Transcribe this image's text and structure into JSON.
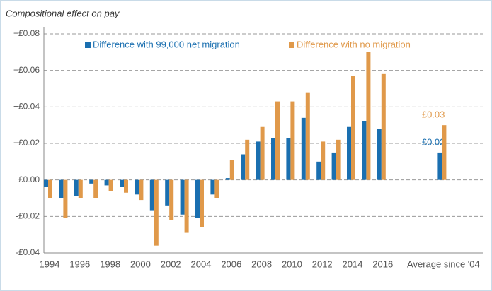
{
  "chart_data": {
    "type": "bar",
    "y_axis_title": "Compositional effect on pay",
    "categories": [
      "1994",
      null,
      "1996",
      null,
      "1998",
      null,
      "2000",
      null,
      "2002",
      null,
      "2004",
      null,
      "2006",
      null,
      "2008",
      null,
      "2010",
      null,
      "2012",
      null,
      "2014",
      null,
      "2016",
      null,
      null,
      null,
      "Average since '04"
    ],
    "series": [
      {
        "name": "Difference with 99,000 net migration",
        "color": "#1a6fb0",
        "values": [
          -0.004,
          -0.01,
          -0.009,
          -0.002,
          -0.003,
          -0.004,
          -0.008,
          -0.017,
          -0.014,
          -0.019,
          -0.021,
          -0.008,
          0.001,
          0.014,
          0.021,
          0.023,
          0.023,
          0.034,
          0.01,
          0.015,
          0.029,
          0.032,
          0.028,
          null,
          null,
          null,
          0.015
        ],
        "value_labels": [
          null,
          null,
          null,
          null,
          null,
          null,
          null,
          null,
          null,
          null,
          null,
          null,
          null,
          null,
          null,
          null,
          null,
          null,
          null,
          null,
          null,
          null,
          null,
          null,
          null,
          null,
          "£0.02"
        ]
      },
      {
        "name": "Difference with no migration",
        "color": "#e0994a",
        "values": [
          -0.01,
          -0.021,
          -0.01,
          -0.01,
          -0.006,
          -0.007,
          -0.011,
          -0.036,
          -0.022,
          -0.029,
          -0.026,
          -0.01,
          0.011,
          0.022,
          0.029,
          0.043,
          0.043,
          0.048,
          0.021,
          0.022,
          0.057,
          0.07,
          0.058,
          null,
          null,
          null,
          0.03
        ],
        "value_labels": [
          null,
          null,
          null,
          null,
          null,
          null,
          null,
          null,
          null,
          null,
          null,
          null,
          null,
          null,
          null,
          null,
          null,
          null,
          null,
          null,
          null,
          null,
          null,
          null,
          null,
          null,
          "£0.03"
        ]
      }
    ],
    "ylim": [
      -0.04,
      0.08
    ],
    "yticks": [
      {
        "value": -0.04,
        "label": "-£0.04"
      },
      {
        "value": -0.02,
        "label": "-£0.02"
      },
      {
        "value": 0,
        "label": "£0.00"
      },
      {
        "value": 0.02,
        "label": "+£0.02"
      },
      {
        "value": 0.04,
        "label": "+£0.04"
      },
      {
        "value": 0.06,
        "label": "+£0.06"
      },
      {
        "value": 0.08,
        "label": "+£0.08"
      }
    ],
    "grid": true,
    "legend": "top"
  }
}
